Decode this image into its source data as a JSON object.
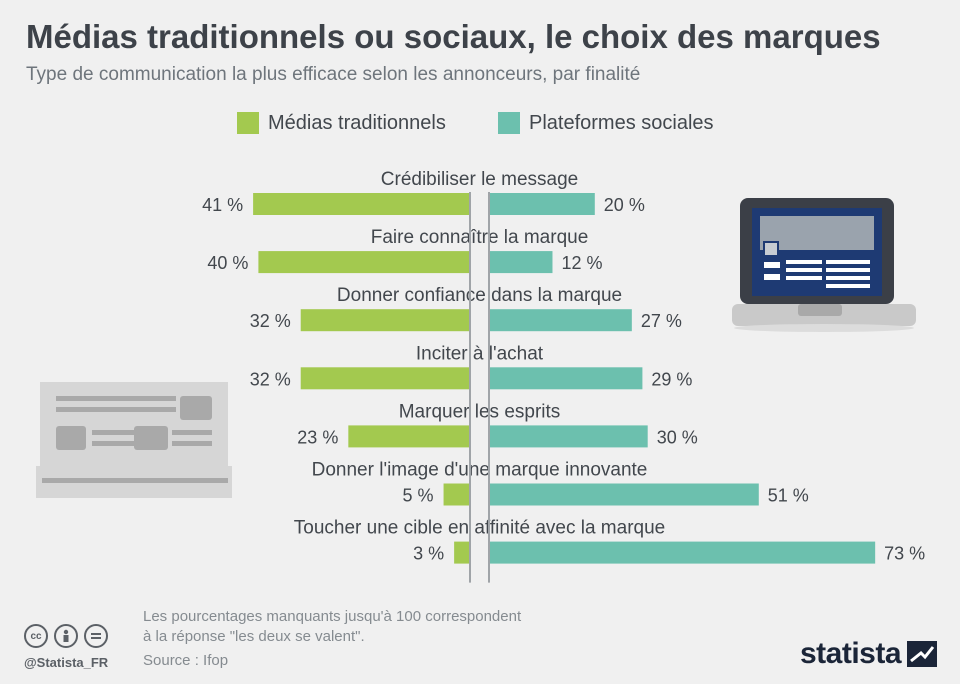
{
  "header": {
    "title": "Médias traditionnels ou sociaux, le choix des marques",
    "subtitle": "Type de communication la plus efficace selon les annonceurs, par finalité"
  },
  "legend": [
    {
      "label": "Médias traditionnels",
      "color": "#a3c94f"
    },
    {
      "label": "Plateformes sociales",
      "color": "#6cc0ae"
    }
  ],
  "chart_data": {
    "type": "bar",
    "orientation": "diverging-horizontal",
    "categories": [
      "Crédibiliser le message",
      "Faire connaître la marque",
      "Donner confiance dans la marque",
      "Inciter à l'achat",
      "Marquer les esprits",
      "Donner l'image d'une marque innovante",
      "Toucher une cible en affinité avec la marque"
    ],
    "series": [
      {
        "name": "Médias traditionnels",
        "color": "#a3c94f",
        "values": [
          41,
          40,
          32,
          32,
          23,
          5,
          3
        ]
      },
      {
        "name": "Plateformes sociales",
        "color": "#6cc0ae",
        "values": [
          20,
          12,
          27,
          29,
          30,
          51,
          73
        ]
      }
    ],
    "value_suffix": " %"
  },
  "footer": {
    "note_line1": "Les pourcentages manquants jusqu'à 100 correspondent",
    "note_line2": "à la réponse \"les deux se valent\".",
    "source": "Source : Ifop",
    "handle": "@Statista_FR",
    "brand": "statista"
  },
  "icons": {
    "cc": "creative-commons-icon",
    "by": "attribution-icon",
    "nd": "no-derivatives-icon",
    "newspaper": "newspaper-illustration",
    "laptop": "laptop-illustration"
  }
}
